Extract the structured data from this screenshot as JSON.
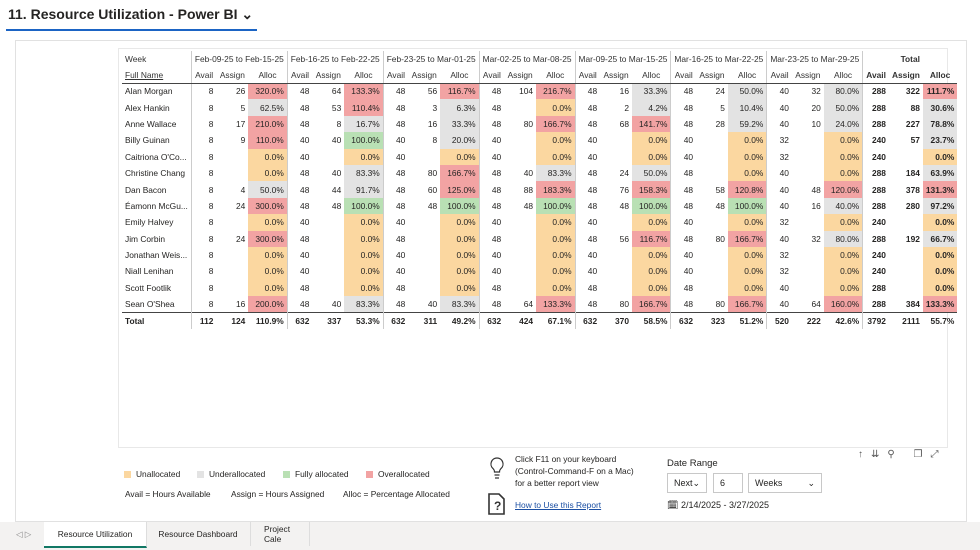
{
  "header": {
    "title": "11. Resource Utilization - Power BI"
  },
  "table": {
    "week_label": "Week",
    "name_label": "Full Name",
    "periods": [
      "Feb-09-25 to Feb-15-25",
      "Feb-16-25 to Feb-22-25",
      "Feb-23-25 to Mar-01-25",
      "Mar-02-25 to Mar-08-25",
      "Mar-09-25 to Mar-15-25",
      "Mar-16-25 to Mar-22-25",
      "Mar-23-25 to Mar-29-25",
      "Total"
    ],
    "subheaders": [
      "Avail",
      "Assign",
      "Alloc"
    ],
    "rows": [
      {
        "name": "Alan Morgan",
        "cells": [
          "8",
          "26",
          "320.0%",
          "48",
          "64",
          "133.3%",
          "48",
          "56",
          "116.7%",
          "48",
          "104",
          "216.7%",
          "48",
          "16",
          "33.3%",
          "48",
          "24",
          "50.0%",
          "40",
          "32",
          "80.0%",
          "288",
          "322",
          "111.7%"
        ]
      },
      {
        "name": "Alex Hankin",
        "cells": [
          "8",
          "5",
          "62.5%",
          "48",
          "53",
          "110.4%",
          "48",
          "3",
          "6.3%",
          "48",
          null,
          "0.0%",
          "48",
          "2",
          "4.2%",
          "48",
          "5",
          "10.4%",
          "40",
          "20",
          "50.0%",
          "288",
          "88",
          "30.6%"
        ]
      },
      {
        "name": "Anne Wallace",
        "cells": [
          "8",
          "17",
          "210.0%",
          "48",
          "8",
          "16.7%",
          "48",
          "16",
          "33.3%",
          "48",
          "80",
          "166.7%",
          "48",
          "68",
          "141.7%",
          "48",
          "28",
          "59.2%",
          "40",
          "10",
          "24.0%",
          "288",
          "227",
          "78.8%"
        ]
      },
      {
        "name": "Billy Guinan",
        "cells": [
          "8",
          "9",
          "110.0%",
          "40",
          "40",
          "100.0%",
          "40",
          "8",
          "20.0%",
          "40",
          null,
          "0.0%",
          "40",
          null,
          "0.0%",
          "40",
          null,
          "0.0%",
          "32",
          null,
          "0.0%",
          "240",
          "57",
          "23.7%"
        ]
      },
      {
        "name": "Caitriona O'Co...",
        "cells": [
          "8",
          null,
          "0.0%",
          "40",
          null,
          "0.0%",
          "40",
          null,
          "0.0%",
          "40",
          null,
          "0.0%",
          "40",
          null,
          "0.0%",
          "40",
          null,
          "0.0%",
          "32",
          null,
          "0.0%",
          "240",
          null,
          "0.0%"
        ]
      },
      {
        "name": "Christine Chang",
        "cells": [
          "8",
          null,
          "0.0%",
          "48",
          "40",
          "83.3%",
          "48",
          "80",
          "166.7%",
          "48",
          "40",
          "83.3%",
          "48",
          "24",
          "50.0%",
          "48",
          null,
          "0.0%",
          "40",
          null,
          "0.0%",
          "288",
          "184",
          "63.9%"
        ]
      },
      {
        "name": "Dan Bacon",
        "cells": [
          "8",
          "4",
          "50.0%",
          "48",
          "44",
          "91.7%",
          "48",
          "60",
          "125.0%",
          "48",
          "88",
          "183.3%",
          "48",
          "76",
          "158.3%",
          "48",
          "58",
          "120.8%",
          "40",
          "48",
          "120.0%",
          "288",
          "378",
          "131.3%"
        ]
      },
      {
        "name": "Éamonn McGu...",
        "cells": [
          "8",
          "24",
          "300.0%",
          "48",
          "48",
          "100.0%",
          "48",
          "48",
          "100.0%",
          "48",
          "48",
          "100.0%",
          "48",
          "48",
          "100.0%",
          "48",
          "48",
          "100.0%",
          "40",
          "16",
          "40.0%",
          "288",
          "280",
          "97.2%"
        ]
      },
      {
        "name": "Emily Halvey",
        "cells": [
          "8",
          null,
          "0.0%",
          "40",
          null,
          "0.0%",
          "40",
          null,
          "0.0%",
          "40",
          null,
          "0.0%",
          "40",
          null,
          "0.0%",
          "40",
          null,
          "0.0%",
          "32",
          null,
          "0.0%",
          "240",
          null,
          "0.0%"
        ]
      },
      {
        "name": "Jim Corbin",
        "cells": [
          "8",
          "24",
          "300.0%",
          "48",
          null,
          "0.0%",
          "48",
          null,
          "0.0%",
          "48",
          null,
          "0.0%",
          "48",
          "56",
          "116.7%",
          "48",
          "80",
          "166.7%",
          "40",
          "32",
          "80.0%",
          "288",
          "192",
          "66.7%"
        ]
      },
      {
        "name": "Jonathan Weis...",
        "cells": [
          "8",
          null,
          "0.0%",
          "40",
          null,
          "0.0%",
          "40",
          null,
          "0.0%",
          "40",
          null,
          "0.0%",
          "40",
          null,
          "0.0%",
          "40",
          null,
          "0.0%",
          "32",
          null,
          "0.0%",
          "240",
          null,
          "0.0%"
        ]
      },
      {
        "name": "Niall Lenihan",
        "cells": [
          "8",
          null,
          "0.0%",
          "40",
          null,
          "0.0%",
          "40",
          null,
          "0.0%",
          "40",
          null,
          "0.0%",
          "40",
          null,
          "0.0%",
          "40",
          null,
          "0.0%",
          "32",
          null,
          "0.0%",
          "240",
          null,
          "0.0%"
        ]
      },
      {
        "name": "Scott Footlik",
        "cells": [
          "8",
          null,
          "0.0%",
          "48",
          null,
          "0.0%",
          "48",
          null,
          "0.0%",
          "48",
          null,
          "0.0%",
          "48",
          null,
          "0.0%",
          "48",
          null,
          "0.0%",
          "40",
          null,
          "0.0%",
          "288",
          null,
          "0.0%"
        ]
      },
      {
        "name": "Sean O'Shea",
        "cells": [
          "8",
          "16",
          "200.0%",
          "48",
          "40",
          "83.3%",
          "48",
          "40",
          "83.3%",
          "48",
          "64",
          "133.3%",
          "48",
          "80",
          "166.7%",
          "48",
          "80",
          "166.7%",
          "40",
          "64",
          "160.0%",
          "288",
          "384",
          "133.3%"
        ]
      }
    ],
    "total": {
      "name": "Total",
      "cells": [
        "112",
        "124",
        "110.9%",
        "632",
        "337",
        "53.3%",
        "632",
        "311",
        "49.2%",
        "632",
        "424",
        "67.1%",
        "632",
        "370",
        "58.5%",
        "632",
        "323",
        "51.2%",
        "520",
        "222",
        "42.6%",
        "3792",
        "2111",
        "55.7%"
      ]
    }
  },
  "legend": {
    "items": [
      {
        "label": "Unallocated",
        "color": "#fbd7a0"
      },
      {
        "label": "Underallocated",
        "color": "#e3e3e3"
      },
      {
        "label": "Fully allocated",
        "color": "#b9e0b4"
      },
      {
        "label": "Overallocated",
        "color": "#f2a3a3"
      }
    ],
    "notes": [
      "Avail = Hours Available",
      "Assign = Hours Assigned",
      "Alloc = Percentage Allocated"
    ]
  },
  "tip": {
    "lines": [
      "Click F11 on your keyboard",
      "(Control-Command-F on a Mac)",
      "for a better report view"
    ],
    "link": "How to Use this Report"
  },
  "date_range": {
    "label": "Date Range",
    "direction": "Next",
    "count": "6",
    "unit": "Weeks",
    "range": "2/14/2025 - 3/27/2025"
  },
  "tabs": [
    "Resource Utilization",
    "Resource Dashboard",
    "Project Cale"
  ]
}
